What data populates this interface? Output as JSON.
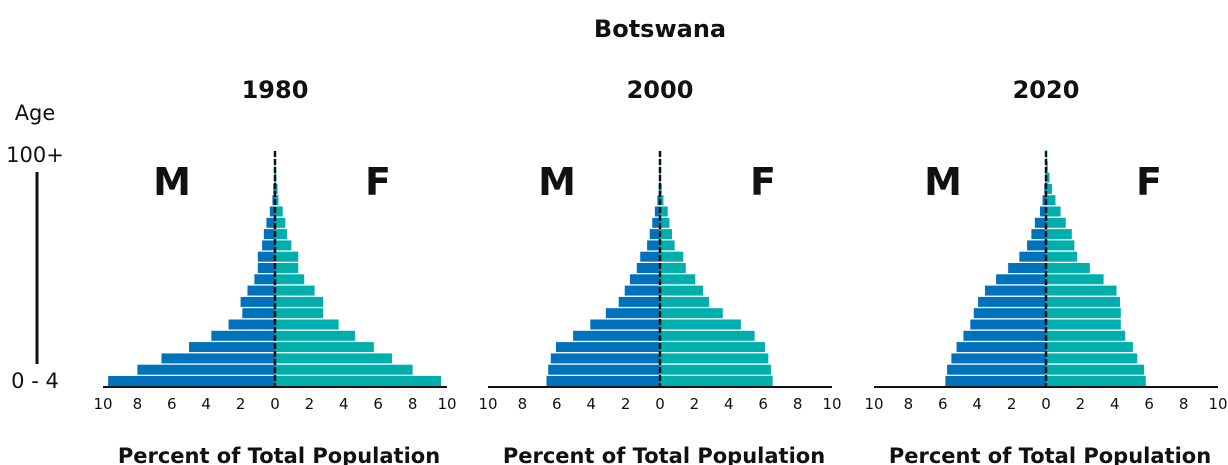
{
  "title": "Botswana",
  "chart_data": [
    {
      "type": "pyramid",
      "title": "1980",
      "ylabel": "Age",
      "categories": [
        "0 - 4",
        null,
        null,
        null,
        null,
        null,
        null,
        null,
        null,
        null,
        null,
        null,
        null,
        null,
        null,
        null,
        null,
        null,
        null,
        null,
        "100+"
      ],
      "series": [
        {
          "name": "M",
          "color": "#0072bc",
          "values": [
            9.7,
            8.0,
            6.6,
            5.0,
            3.7,
            2.7,
            1.9,
            2.0,
            1.6,
            1.2,
            1.0,
            1.0,
            0.75,
            0.65,
            0.5,
            0.3,
            0.15,
            0.1,
            0.05,
            0.02,
            0.01
          ]
        },
        {
          "name": "F",
          "color": "#00aeac",
          "values": [
            9.65,
            8.0,
            6.8,
            5.75,
            4.65,
            3.7,
            2.8,
            2.8,
            2.3,
            1.7,
            1.35,
            1.35,
            0.95,
            0.7,
            0.6,
            0.45,
            0.2,
            0.15,
            0.08,
            0.03,
            0.01
          ]
        }
      ],
      "xlim": [
        -10,
        10
      ],
      "xticks": [
        {
          "value": -10,
          "label": "10"
        },
        {
          "value": -8,
          "label": "8"
        },
        {
          "value": -6,
          "label": "6"
        },
        {
          "value": -4,
          "label": "4"
        },
        {
          "value": -2,
          "label": "2"
        },
        0,
        2,
        4,
        6,
        8,
        10
      ],
      "xlabel": "Percent of Total Population"
    },
    {
      "type": "pyramid",
      "title": "2000",
      "series": [
        {
          "name": "M",
          "color": "#0072bc",
          "values": [
            6.6,
            6.5,
            6.35,
            6.05,
            5.05,
            4.05,
            3.15,
            2.4,
            2.05,
            1.75,
            1.35,
            1.15,
            0.75,
            0.6,
            0.45,
            0.3,
            0.15,
            0.08,
            0.04,
            0.02,
            0.01
          ]
        },
        {
          "name": "F",
          "color": "#00aeac",
          "values": [
            6.55,
            6.45,
            6.3,
            6.1,
            5.5,
            4.7,
            3.65,
            2.85,
            2.5,
            2.05,
            1.5,
            1.35,
            0.85,
            0.7,
            0.55,
            0.45,
            0.2,
            0.1,
            0.05,
            0.02,
            0.01
          ]
        }
      ],
      "xlim": [
        -10,
        10
      ],
      "xticks": [
        {
          "value": -10,
          "label": "10"
        },
        {
          "value": -8,
          "label": "8"
        },
        {
          "value": -6,
          "label": "6"
        },
        {
          "value": -4,
          "label": "4"
        },
        {
          "value": -2,
          "label": "2"
        },
        0,
        2,
        4,
        6,
        8,
        10
      ],
      "xlabel": "Percent of Total Population"
    },
    {
      "type": "pyramid",
      "title": "2020",
      "series": [
        {
          "name": "M",
          "color": "#0072bc",
          "values": [
            5.85,
            5.75,
            5.5,
            5.2,
            4.8,
            4.4,
            4.2,
            3.95,
            3.55,
            2.9,
            2.2,
            1.55,
            1.1,
            0.85,
            0.65,
            0.35,
            0.2,
            0.1,
            0.05,
            0.02,
            0.01
          ]
        },
        {
          "name": "F",
          "color": "#00aeac",
          "values": [
            5.8,
            5.7,
            5.3,
            5.05,
            4.6,
            4.35,
            4.35,
            4.3,
            4.1,
            3.35,
            2.55,
            1.8,
            1.65,
            1.5,
            1.15,
            0.85,
            0.55,
            0.35,
            0.2,
            0.1,
            0.05
          ]
        }
      ],
      "xlim": [
        -10,
        10
      ],
      "xticks": [
        {
          "value": -10,
          "label": "10"
        },
        {
          "value": -8,
          "label": "8"
        },
        {
          "value": -6,
          "label": "6"
        },
        {
          "value": -4,
          "label": "4"
        },
        {
          "value": -2,
          "label": "2"
        },
        0,
        2,
        4,
        6,
        8,
        10
      ],
      "xlabel": "Percent of Total Population"
    }
  ]
}
